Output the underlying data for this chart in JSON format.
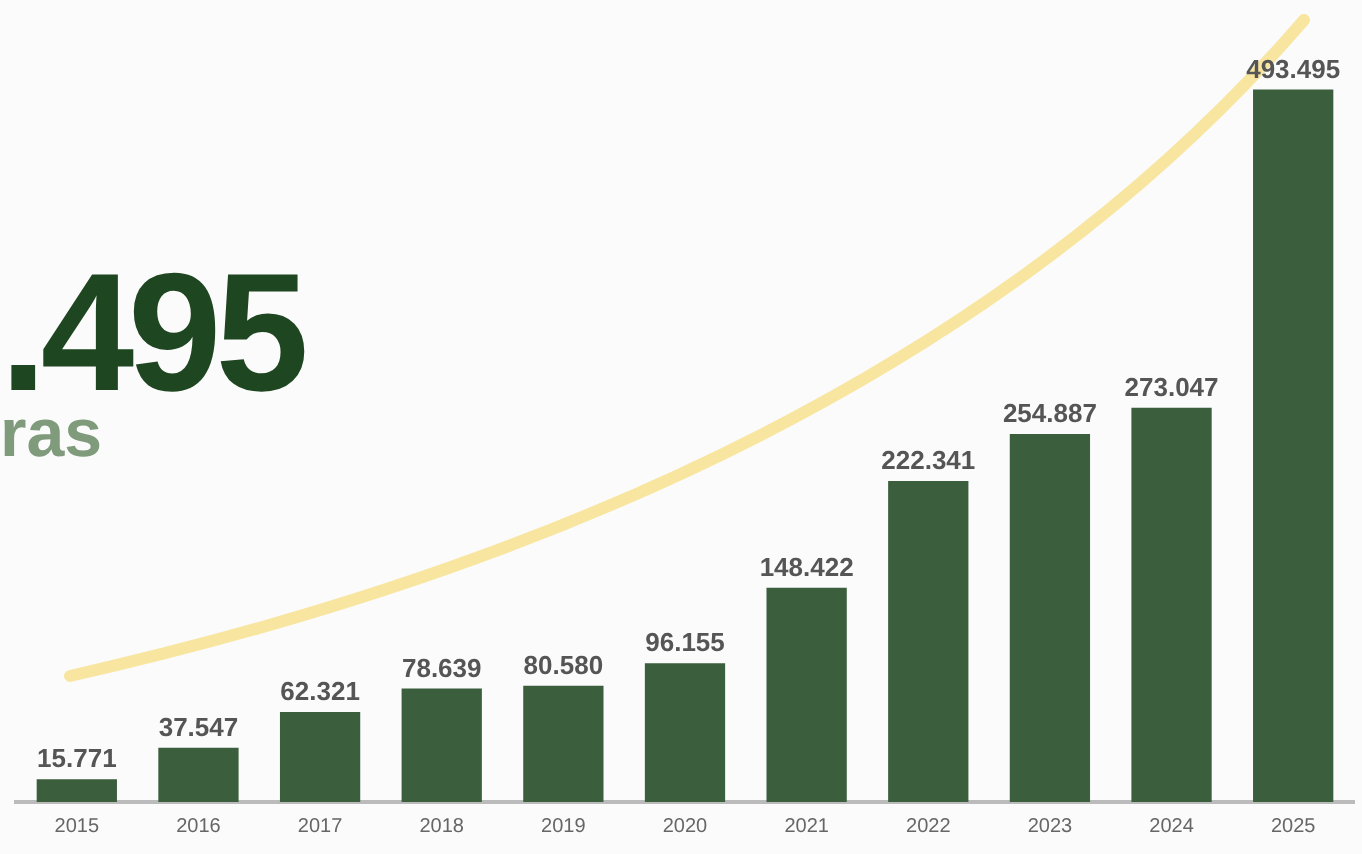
{
  "chart_data": {
    "type": "bar",
    "categories": [
      "2015",
      "2016",
      "2017",
      "2018",
      "2019",
      "2020",
      "2021",
      "2022",
      "2023",
      "2024",
      "2025"
    ],
    "values": [
      15771,
      37547,
      62321,
      78639,
      80580,
      96155,
      148422,
      222341,
      254887,
      273047,
      493495
    ],
    "value_labels": [
      "15.771",
      "37.547",
      "62.321",
      "78.639",
      "80.580",
      "96.155",
      "148.422",
      "222.341",
      "254.887",
      "273.047",
      "493.495"
    ],
    "color": "#3b5e3d",
    "annotations": [
      ".495",
      "ras"
    ],
    "grid": false,
    "legend": false
  }
}
